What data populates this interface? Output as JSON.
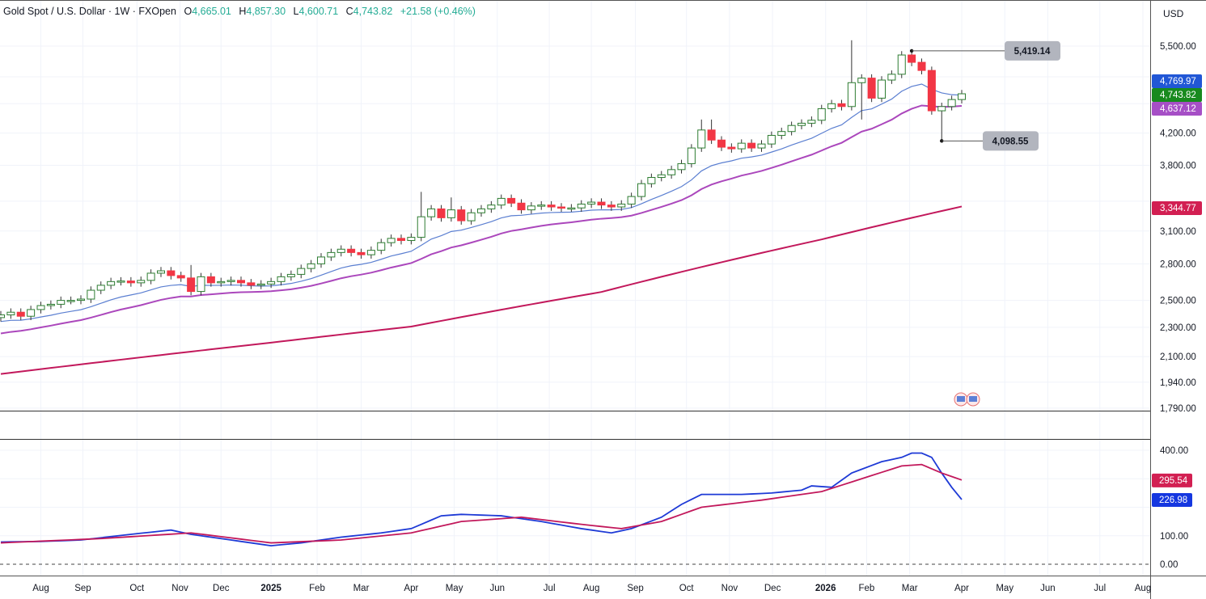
{
  "header": {
    "symbol": "Gold Spot / U.S. Dollar · 1W · FXOpen",
    "o_label": "O",
    "open": "4,665.01",
    "h_label": "H",
    "high": "4,857.30",
    "l_label": "L",
    "low": "4,600.71",
    "c_label": "C",
    "close": "4,743.82",
    "change": "+21.58 (+0.46%)"
  },
  "currency": "USD",
  "colors": {
    "up": "#ffffff",
    "up_border": "#2e7d32",
    "down": "#f23645",
    "ema_fast": "#5b7fd1",
    "ema_slow": "#ab47bc",
    "ma_long": "#c2185b",
    "ind_a": "#1e3ad6",
    "ind_b": "#c2185b",
    "label_blue": "#2157d6",
    "label_green": "#188a1e",
    "label_purple": "#a64fc6",
    "label_red": "#d21f52"
  },
  "chart_data": [
    {
      "type": "candlestick",
      "title": "Gold Spot / U.S. Dollar · 1W · FXOpen",
      "scale": "log",
      "ylim": [
        1790,
        5650
      ],
      "y_ticks": [
        "5,500.00",
        "4,200.00",
        "3,800.00",
        "3,100.00",
        "2,800.00",
        "2,500.00",
        "2,300.00",
        "2,100.00",
        "1,940.00",
        "1,790.00"
      ],
      "y_tick_values": [
        5500,
        4200,
        3800,
        3100,
        2800,
        2500,
        2300,
        2100,
        1940,
        1790
      ],
      "closes": [
        2390,
        2410,
        2380,
        2430,
        2460,
        2470,
        2500,
        2500,
        2510,
        2580,
        2620,
        2650,
        2655,
        2640,
        2660,
        2720,
        2740,
        2700,
        2680,
        2570,
        2690,
        2640,
        2650,
        2660,
        2640,
        2620,
        2630,
        2650,
        2690,
        2710,
        2760,
        2800,
        2860,
        2900,
        2930,
        2900,
        2880,
        2920,
        2990,
        3030,
        3010,
        3040,
        3240,
        3320,
        3230,
        3310,
        3200,
        3280,
        3320,
        3360,
        3430,
        3380,
        3310,
        3350,
        3360,
        3340,
        3330,
        3330,
        3370,
        3390,
        3360,
        3340,
        3370,
        3450,
        3590,
        3660,
        3690,
        3750,
        3820,
        4010,
        4240,
        4110,
        4020,
        4000,
        4070,
        4010,
        4060,
        4170,
        4220,
        4300,
        4330,
        4370,
        4530,
        4600,
        4560,
        4910,
        4980,
        4680,
        4950,
        5040,
        5350,
        5230,
        5100,
        4500,
        4560,
        4660,
        4743.82
      ],
      "first_open": 2370,
      "extreme_highs": {
        "19": 2790,
        "42": 3500,
        "45": 3440,
        "70": 4380,
        "71": 4380,
        "85": 5600,
        "91": 5419.14
      },
      "extreme_lows": {
        "19": 2540,
        "86": 4380,
        "94": 4098.55
      },
      "ema_fast_period": 10,
      "ema_slow_period": 20,
      "ma_long": {
        "idx": [
          0,
          27,
          41,
          60,
          82,
          96
        ],
        "values": [
          1990,
          2193,
          2305,
          2566,
          3020,
          3344.77
        ]
      },
      "annotations": {
        "high_label": "5,419.14",
        "low_label": "4,098.55"
      },
      "price_labels": {
        "ema_fast": "4,769.97",
        "last": "4,743.82",
        "ema_slow": "4,637.12",
        "ma_long": "3,344.77"
      }
    },
    {
      "type": "line",
      "ylim": [
        0,
        420
      ],
      "y_ticks": [
        "400.00",
        "100.00",
        "0.00"
      ],
      "y_tick_values": [
        400,
        100,
        0
      ],
      "series": [
        {
          "name": "fast",
          "idx": [
            0,
            4,
            8,
            13,
            17,
            19,
            22,
            27,
            30,
            34,
            38,
            41,
            44,
            46,
            50,
            54,
            58,
            61,
            63,
            66,
            68,
            70,
            74,
            77,
            80,
            81,
            83,
            85,
            88,
            90,
            91,
            92,
            93,
            94,
            95,
            96
          ],
          "values": [
            78,
            80,
            85,
            105,
            120,
            105,
            90,
            65,
            75,
            95,
            110,
            125,
            170,
            175,
            170,
            150,
            125,
            110,
            125,
            165,
            210,
            245,
            245,
            250,
            260,
            275,
            270,
            320,
            360,
            375,
            390,
            390,
            375,
            320,
            270,
            226.98
          ]
        },
        {
          "name": "slow",
          "idx": [
            0,
            10,
            19,
            27,
            34,
            41,
            46,
            52,
            58,
            62,
            66,
            70,
            76,
            82,
            86,
            90,
            92,
            94,
            96
          ],
          "values": [
            75,
            90,
            110,
            75,
            85,
            110,
            150,
            165,
            140,
            125,
            150,
            200,
            225,
            255,
            300,
            345,
            350,
            320,
            295.54
          ]
        }
      ],
      "price_labels": {
        "slow": "295.54",
        "fast": "226.98"
      }
    }
  ],
  "x_axis": {
    "labels": [
      "Aug",
      "Sep",
      "Oct",
      "Nov",
      "Dec",
      "2025",
      "Feb",
      "Mar",
      "Apr",
      "May",
      "Jun",
      "Jul",
      "Aug",
      "Sep",
      "Oct",
      "Nov",
      "Dec",
      "2026",
      "Feb",
      "Mar",
      "Apr",
      "May",
      "Jun",
      "Jul",
      "Aug"
    ],
    "week_index": [
      4,
      8.2,
      13.6,
      17.9,
      22,
      27,
      31.6,
      36,
      41,
      45.3,
      49.6,
      54.8,
      59,
      63.4,
      68.5,
      72.8,
      77.1,
      82.4,
      86.5,
      90.8,
      96,
      100.3,
      104.6,
      109.8,
      114.1
    ]
  }
}
